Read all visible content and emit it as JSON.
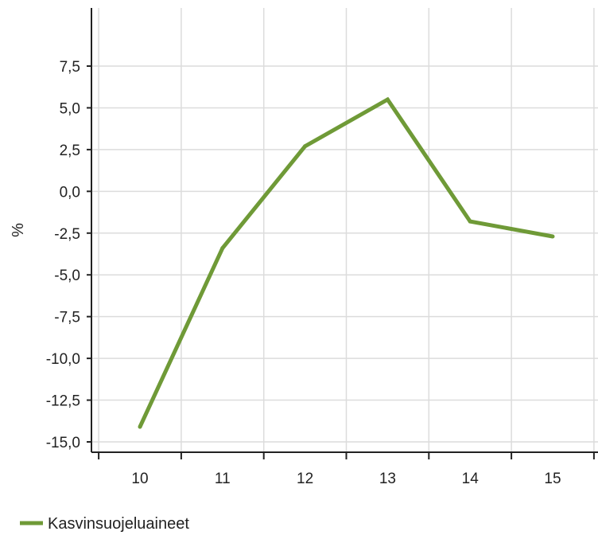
{
  "chart_data": {
    "type": "line",
    "title": "",
    "xlabel": "",
    "ylabel": "%",
    "x": [
      "10",
      "11",
      "12",
      "13",
      "14",
      "15"
    ],
    "ylim": [
      -15.0,
      7.5
    ],
    "yticks": [
      "-15,0",
      "-12,5",
      "-10,0",
      "-7,5",
      "-5,0",
      "-2,5",
      "0,0",
      "2,5",
      "5,0",
      "7,5"
    ],
    "ytick_values": [
      -15.0,
      -12.5,
      -10.0,
      -7.5,
      -5.0,
      -2.5,
      0.0,
      2.5,
      5.0,
      7.5
    ],
    "grid": true,
    "legend_position": "bottom-left",
    "series": [
      {
        "name": "Kasvinsuojeluaineet",
        "color": "#6f9a37",
        "values": [
          -14.1,
          -3.4,
          2.7,
          5.5,
          -1.8,
          -2.7
        ]
      }
    ]
  }
}
